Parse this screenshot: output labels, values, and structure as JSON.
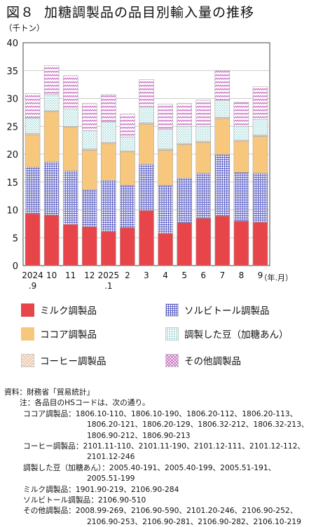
{
  "title": {
    "fig": "図８",
    "text": "加糖調製品の品目別輸入量の推移"
  },
  "colors": {
    "milk": "#e8454b",
    "sorbitol": "#5b5fc4",
    "cocoa": "#f8c77e",
    "beans": "#6fc4c4",
    "coffee": "#e2b18f",
    "other": "#c86bc0"
  },
  "chart_data": {
    "type": "bar",
    "stacked": true,
    "ylabel": "（千トン）",
    "xunit": "（年.月）",
    "ylim": [
      0,
      40
    ],
    "yticks": [
      "0",
      "5",
      "10",
      "15",
      "20",
      "25",
      "30",
      "35",
      "40"
    ],
    "categories": [
      [
        "2024",
        ".9"
      ],
      [
        "10"
      ],
      [
        "11"
      ],
      [
        "12"
      ],
      [
        "2025",
        ".1"
      ],
      [
        "2"
      ],
      [
        "3"
      ],
      [
        "4"
      ],
      [
        "5"
      ],
      [
        "6"
      ],
      [
        "7"
      ],
      [
        "8"
      ],
      [
        "9"
      ]
    ],
    "series": [
      {
        "key": "milk",
        "name": "ミルク調製品",
        "values": [
          9.3,
          9.1,
          7.4,
          7.0,
          6.1,
          6.8,
          9.9,
          5.8,
          7.7,
          8.5,
          8.9,
          8.0,
          7.8
        ]
      },
      {
        "key": "sorbitol",
        "name": "ソルビトール調製品",
        "values": [
          8.4,
          9.5,
          9.6,
          6.6,
          9.2,
          7.6,
          8.3,
          8.6,
          8.0,
          8.1,
          11.0,
          8.7,
          8.8
        ]
      },
      {
        "key": "cocoa",
        "name": "ココア調製品",
        "values": [
          5.8,
          9.0,
          7.8,
          7.1,
          6.6,
          6.0,
          7.2,
          6.3,
          6.0,
          5.5,
          6.5,
          5.6,
          6.6
        ]
      },
      {
        "key": "coffee",
        "name": "コーヒー調製品",
        "values": [
          0.2,
          0.2,
          0.2,
          0.2,
          0.2,
          0.2,
          0.2,
          0.2,
          0.2,
          0.2,
          0.2,
          0.2,
          0.2
        ]
      },
      {
        "key": "beans",
        "name": "調製した豆（加糖あん）",
        "values": [
          2.8,
          2.9,
          3.1,
          3.3,
          3.7,
          2.5,
          2.9,
          3.6,
          3.1,
          2.7,
          3.1,
          2.5,
          2.8
        ]
      },
      {
        "key": "other",
        "name": "その他調製品",
        "values": [
          4.4,
          5.2,
          6.0,
          4.9,
          4.9,
          4.1,
          4.9,
          4.5,
          4.1,
          4.7,
          5.3,
          4.3,
          5.9
        ]
      }
    ]
  },
  "legend": [
    {
      "key": "milk",
      "label": "ミルク調製品"
    },
    {
      "key": "sorbitol",
      "label": "ソルビトール調製品"
    },
    {
      "key": "cocoa",
      "label": "ココア調製品"
    },
    {
      "key": "beans",
      "label": "調製した豆（加糖あん）"
    },
    {
      "key": "coffee",
      "label": "コーヒー調製品"
    },
    {
      "key": "other",
      "label": "その他調製品"
    }
  ],
  "notes": {
    "source": "資料：財務省「貿易統計」",
    "note": "注：各品目のHSコードは、次の通り。",
    "cocoa_label": "ココア調製品：",
    "cocoa_1": "1806.10-110、1806.10-190、1806.20-112、1806.20-113、",
    "cocoa_2": "1806.20-121、1806.20-129、1806.32-212、1806.32-213、",
    "cocoa_3": "1806.90-212、1806.90-213",
    "coffee_label": "コーヒー調製品：",
    "coffee_1": "2101.11-110、2101.11-190、2101.12-111、2101.12-112、",
    "coffee_2": "2101.12-246",
    "beans_label": "調製した豆（加糖あん）：",
    "beans_1": "2005.40-191、2005.40-199、2005.51-191、",
    "beans_2": "2005.51-199",
    "milk": "ミルク調製品：1901.90-219、2106.90-284",
    "sorbitol": "ソルビトール調製品：2106.90-510",
    "other_label": "その他調製品：",
    "other_1": "2008.99-269、2106.90-590、2101.20-246、2106.90-252、",
    "other_2": "2106.90-253、2106.90-281、2106.90-282、2106.10-219"
  }
}
